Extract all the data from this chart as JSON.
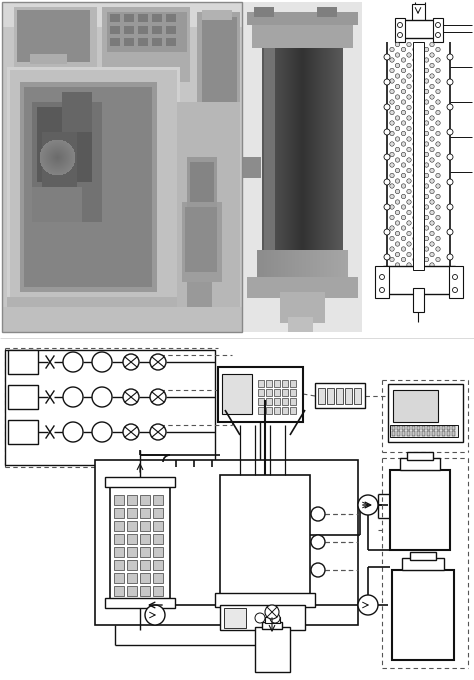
{
  "fig_width": 4.74,
  "fig_height": 6.8,
  "dpi": 100,
  "bg_color": "#ffffff",
  "lc": "#111111",
  "gray1": "#f0f0f0",
  "gray2": "#d0d0d0",
  "gray3": "#b0b0b0",
  "gray4": "#888888",
  "gray5": "#555555",
  "gray6": "#333333",
  "gray7": "#222222"
}
